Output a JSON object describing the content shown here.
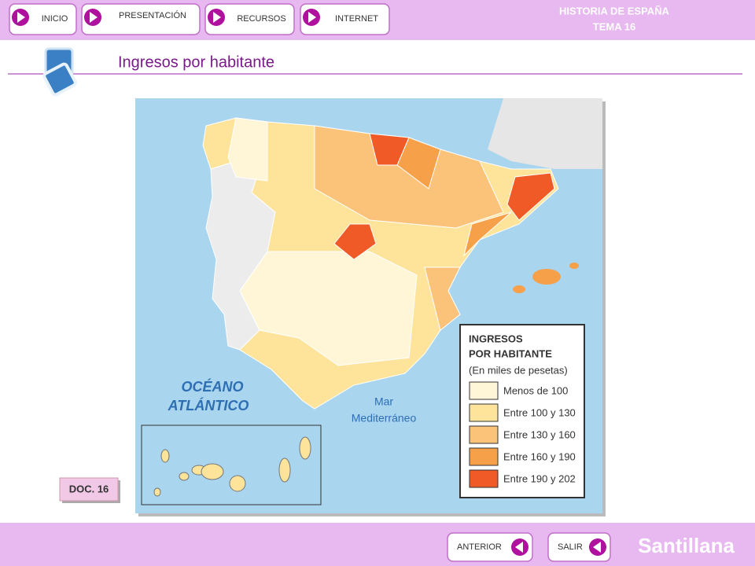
{
  "nav": {
    "buttons": [
      "INICIO",
      "PRESENTACIÓN",
      "RECURSOS",
      "INTERNET"
    ]
  },
  "header": {
    "subject": "HISTORIA DE ESPAÑA",
    "unit": "TEMA 16"
  },
  "title": "Ingresos por habitante",
  "map": {
    "labels": {
      "ocean": [
        "OCÉANO",
        "ATLÁNTICO"
      ],
      "sea": [
        "Mar",
        "Mediterráneo"
      ]
    },
    "legend": {
      "title": [
        "INGRESOS",
        "POR HABITANTE"
      ],
      "subtitle": "(En miles de pesetas)",
      "items": [
        {
          "label": "Menos de 100",
          "color": "#fff6d8"
        },
        {
          "label": "Entre 100 y 130",
          "color": "#fde49a"
        },
        {
          "label": "Entre 130 y 160",
          "color": "#fbc27a"
        },
        {
          "label": "Entre 160 y 190",
          "color": "#f7a04a"
        },
        {
          "label": "Entre 190 y 202",
          "color": "#ef5a26"
        }
      ]
    }
  },
  "doc_label": "DOC. 16",
  "footer": {
    "buttons": [
      "ANTERIOR",
      "SALIR"
    ],
    "brand": "Santillana"
  }
}
